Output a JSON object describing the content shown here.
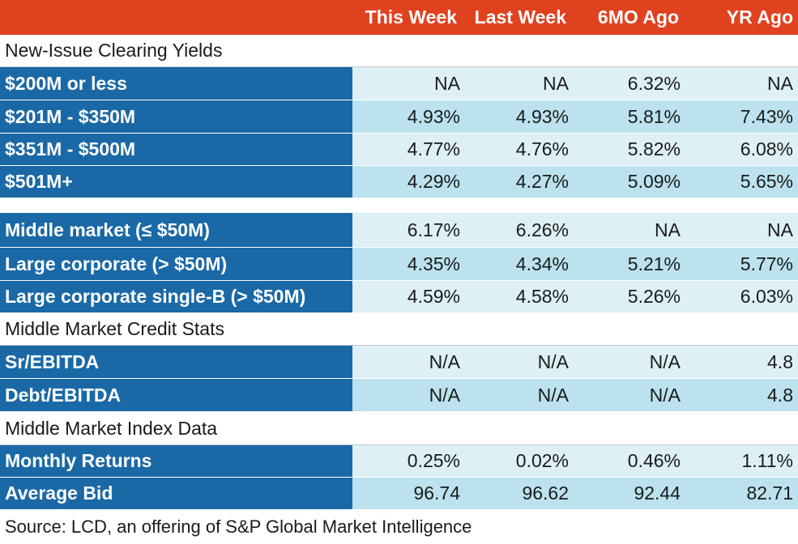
{
  "colors": {
    "header": "#e0411f",
    "label_bg": "#1a69a6",
    "row_light": "#ddf0f6",
    "row_dark": "#bbe2ee"
  },
  "header": {
    "col1": "This Week",
    "col2": "Last Week",
    "col3": "6MO Ago",
    "col4": "YR Ago"
  },
  "sections": {
    "yields": "New-Issue Clearing Yields",
    "credit": "Middle Market Credit Stats",
    "index": "Middle Market Index Data"
  },
  "rows": [
    {
      "label": "$200M or less",
      "v": [
        "NA",
        "NA",
        "6.32%",
        "NA"
      ]
    },
    {
      "label": "$201M - $350M",
      "v": [
        "4.93%",
        "4.93%",
        "5.81%",
        "7.43%"
      ]
    },
    {
      "label": "$351M - $500M",
      "v": [
        "4.77%",
        "4.76%",
        "5.82%",
        "6.08%"
      ]
    },
    {
      "label": "$501M+",
      "v": [
        "4.29%",
        "4.27%",
        "5.09%",
        "5.65%"
      ]
    },
    {
      "label": "Middle market (≤ $50M)",
      "v": [
        "6.17%",
        "6.26%",
        "NA",
        "NA"
      ]
    },
    {
      "label": "Large corporate (> $50M)",
      "v": [
        "4.35%",
        "4.34%",
        "5.21%",
        "5.77%"
      ]
    },
    {
      "label": "Large corporate single-B (> $50M)",
      "v": [
        "4.59%",
        "4.58%",
        "5.26%",
        "6.03%"
      ]
    },
    {
      "label": "Sr/EBITDA",
      "v": [
        "N/A",
        "N/A",
        "N/A",
        "4.8"
      ]
    },
    {
      "label": "Debt/EBITDA",
      "v": [
        "N/A",
        "N/A",
        "N/A",
        "4.8"
      ]
    },
    {
      "label": "Monthly Returns",
      "v": [
        "0.25%",
        "0.02%",
        "0.46%",
        "1.11%"
      ]
    },
    {
      "label": "Average Bid",
      "v": [
        "96.74",
        "96.62",
        "92.44",
        "82.71"
      ]
    }
  ],
  "source": "Source: LCD, an offering of S&P Global Market Intelligence",
  "chart_data": {
    "type": "table",
    "columns": [
      "This Week",
      "Last Week",
      "6MO Ago",
      "YR Ago"
    ],
    "sections": [
      {
        "name": "New-Issue Clearing Yields",
        "rows": [
          {
            "label": "$200M or less",
            "values": [
              "NA",
              "NA",
              "6.32%",
              "NA"
            ]
          },
          {
            "label": "$201M - $350M",
            "values": [
              "4.93%",
              "4.93%",
              "5.81%",
              "7.43%"
            ]
          },
          {
            "label": "$351M - $500M",
            "values": [
              "4.77%",
              "4.76%",
              "5.82%",
              "6.08%"
            ]
          },
          {
            "label": "$501M+",
            "values": [
              "4.29%",
              "4.27%",
              "5.09%",
              "5.65%"
            ]
          },
          {
            "label": "Middle market (≤ $50M)",
            "values": [
              "6.17%",
              "6.26%",
              "NA",
              "NA"
            ]
          },
          {
            "label": "Large corporate (> $50M)",
            "values": [
              "4.35%",
              "4.34%",
              "5.21%",
              "5.77%"
            ]
          },
          {
            "label": "Large corporate single-B (> $50M)",
            "values": [
              "4.59%",
              "4.58%",
              "5.26%",
              "6.03%"
            ]
          }
        ]
      },
      {
        "name": "Middle Market Credit Stats",
        "rows": [
          {
            "label": "Sr/EBITDA",
            "values": [
              "N/A",
              "N/A",
              "N/A",
              "4.8"
            ]
          },
          {
            "label": "Debt/EBITDA",
            "values": [
              "N/A",
              "N/A",
              "N/A",
              "4.8"
            ]
          }
        ]
      },
      {
        "name": "Middle Market Index Data",
        "rows": [
          {
            "label": "Monthly Returns",
            "values": [
              "0.25%",
              "0.02%",
              "0.46%",
              "1.11%"
            ]
          },
          {
            "label": "Average Bid",
            "values": [
              "96.74",
              "96.62",
              "92.44",
              "82.71"
            ]
          }
        ]
      }
    ]
  }
}
